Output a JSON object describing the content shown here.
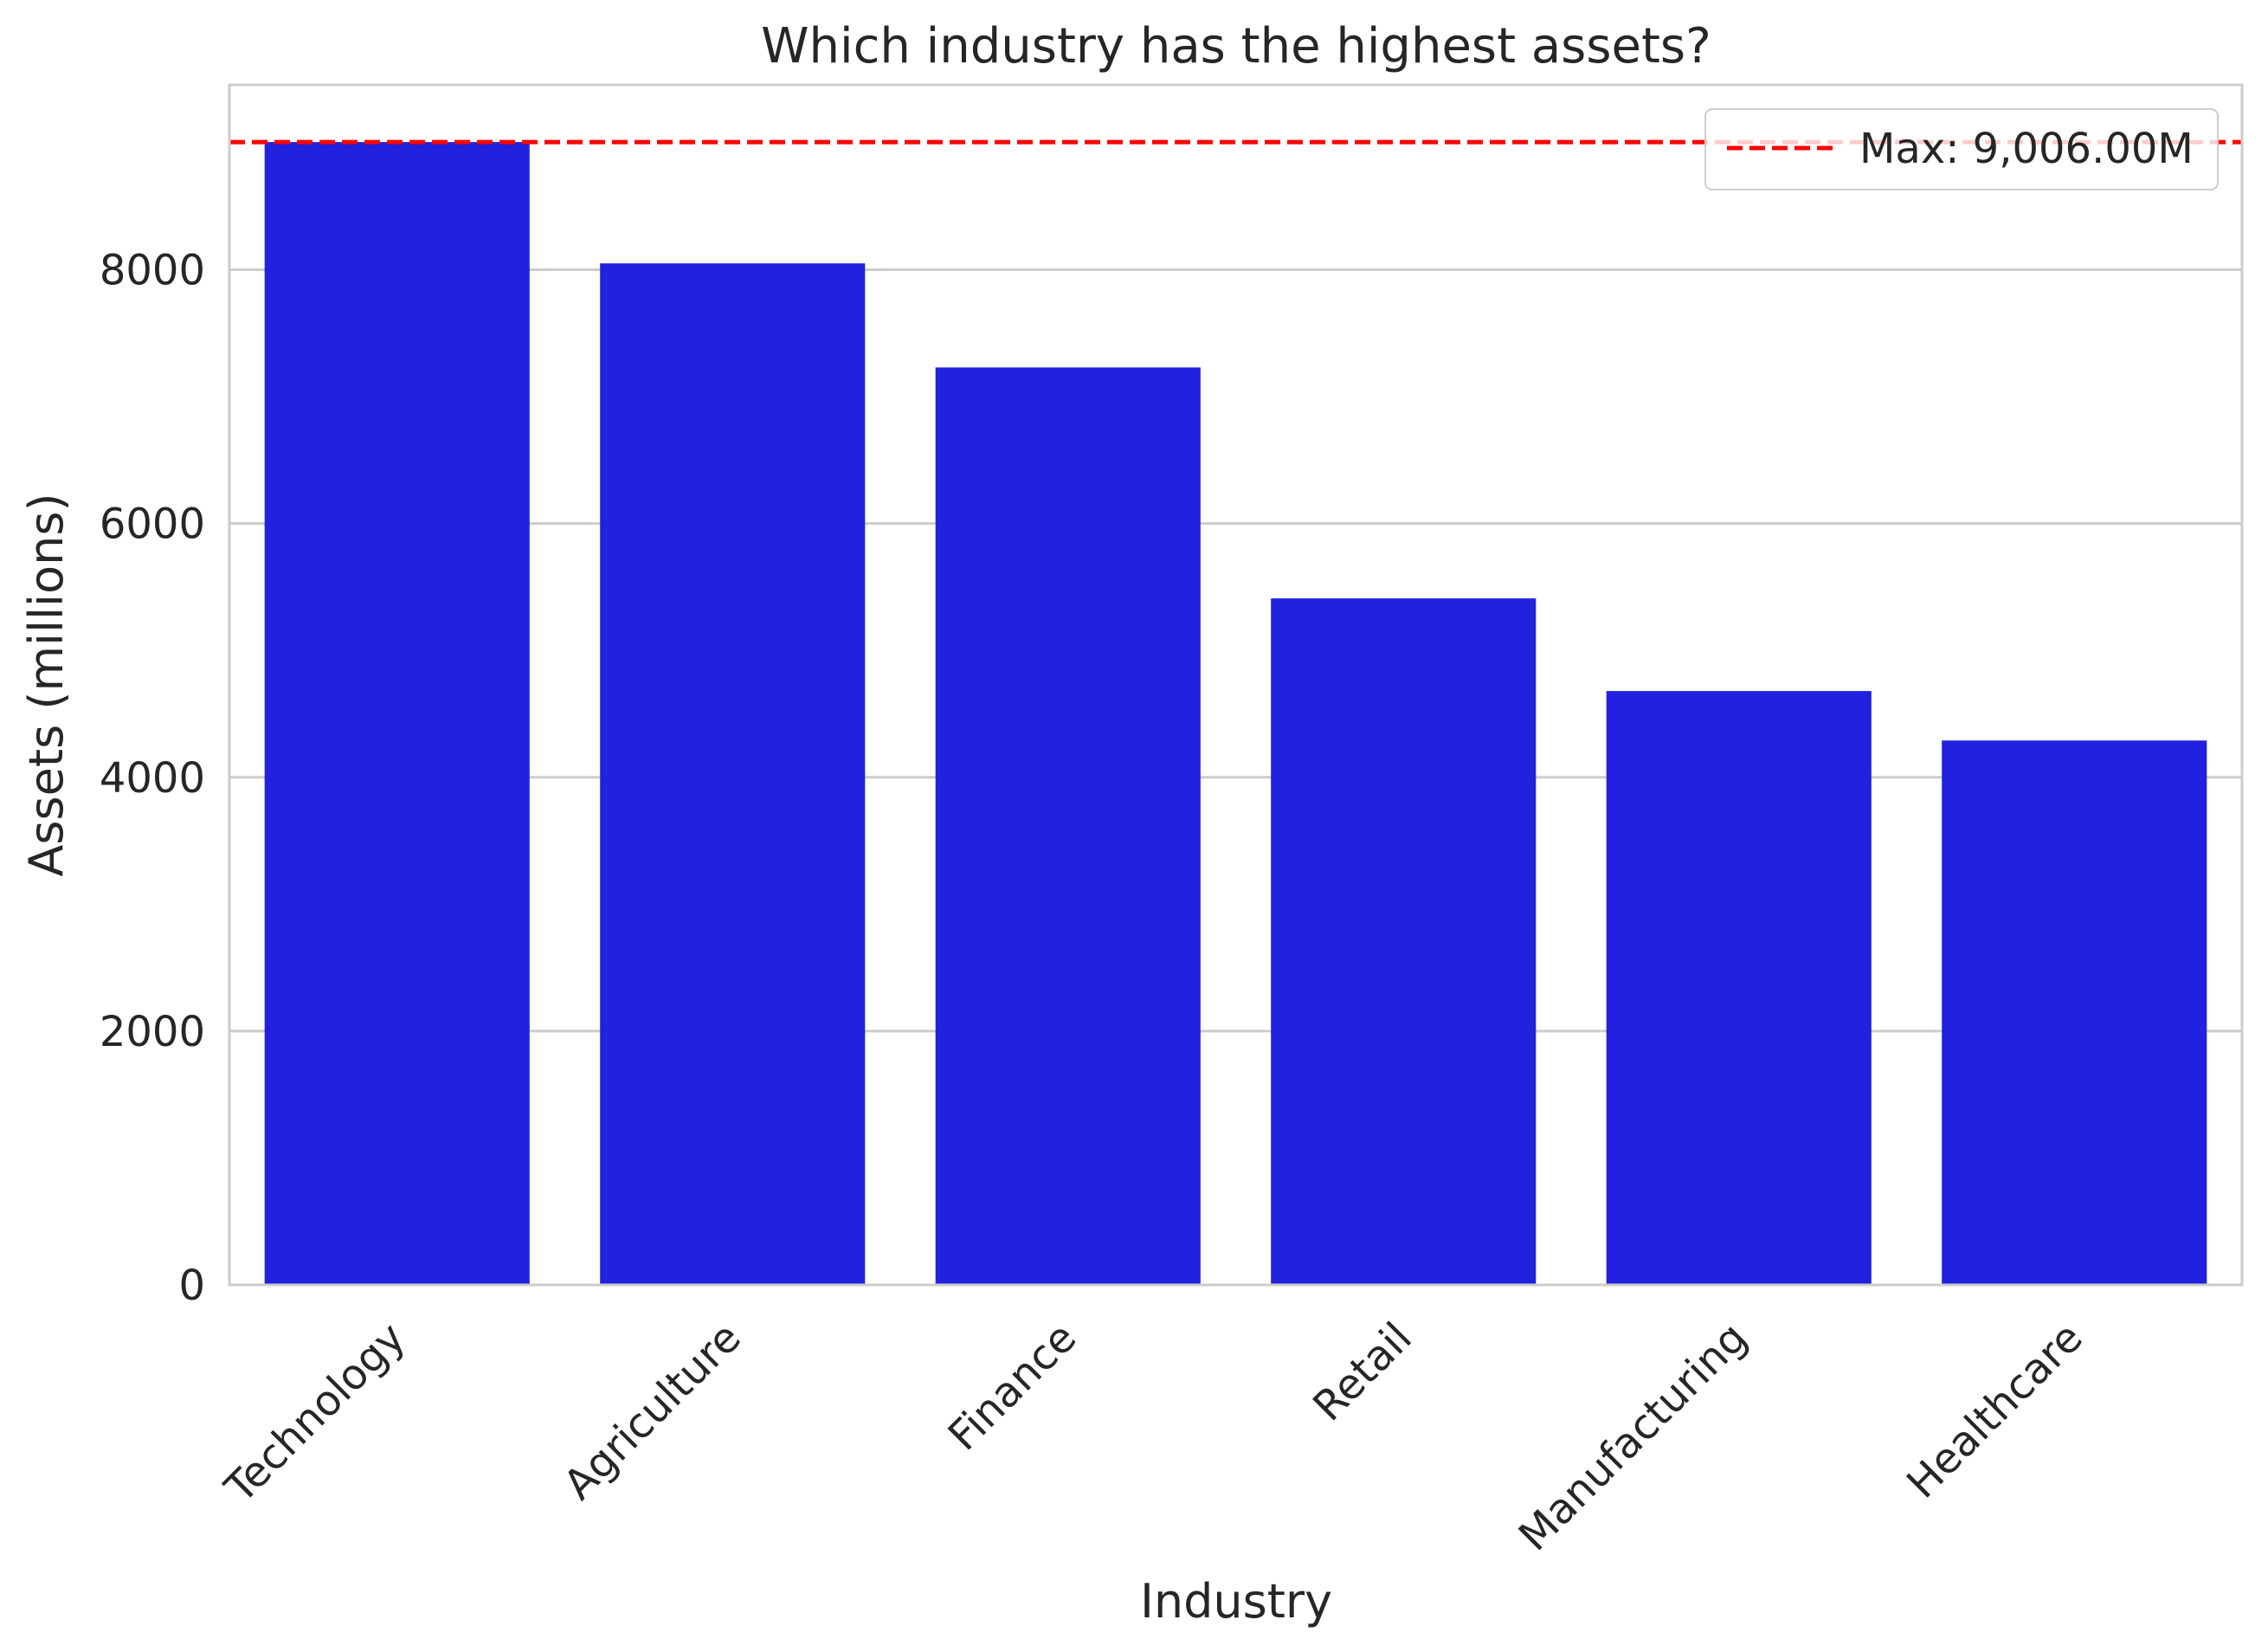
{
  "chart_data": {
    "type": "bar",
    "title": "Which industry has the highest assets?",
    "xlabel": "Industry",
    "ylabel": "Assets (millions)",
    "categories": [
      "Technology",
      "Agriculture",
      "Finance",
      "Retail",
      "Manufacturing",
      "Healthcare"
    ],
    "values": [
      9006,
      8050,
      7230,
      5410,
      4680,
      4290
    ],
    "ylim": [
      0,
      9457
    ],
    "yticks": [
      0,
      2000,
      4000,
      6000,
      8000
    ],
    "ytick_labels": [
      "0",
      "2000",
      "4000",
      "6000",
      "8000"
    ],
    "bar_color": "#2121de",
    "grid": "horizontal",
    "reference_line": {
      "value": 9006,
      "color": "#ff0000",
      "style": "dashed",
      "label": "Max: 9,006.00M"
    },
    "legend": {
      "position": "top-right",
      "entries": [
        "Max: 9,006.00M"
      ]
    }
  }
}
